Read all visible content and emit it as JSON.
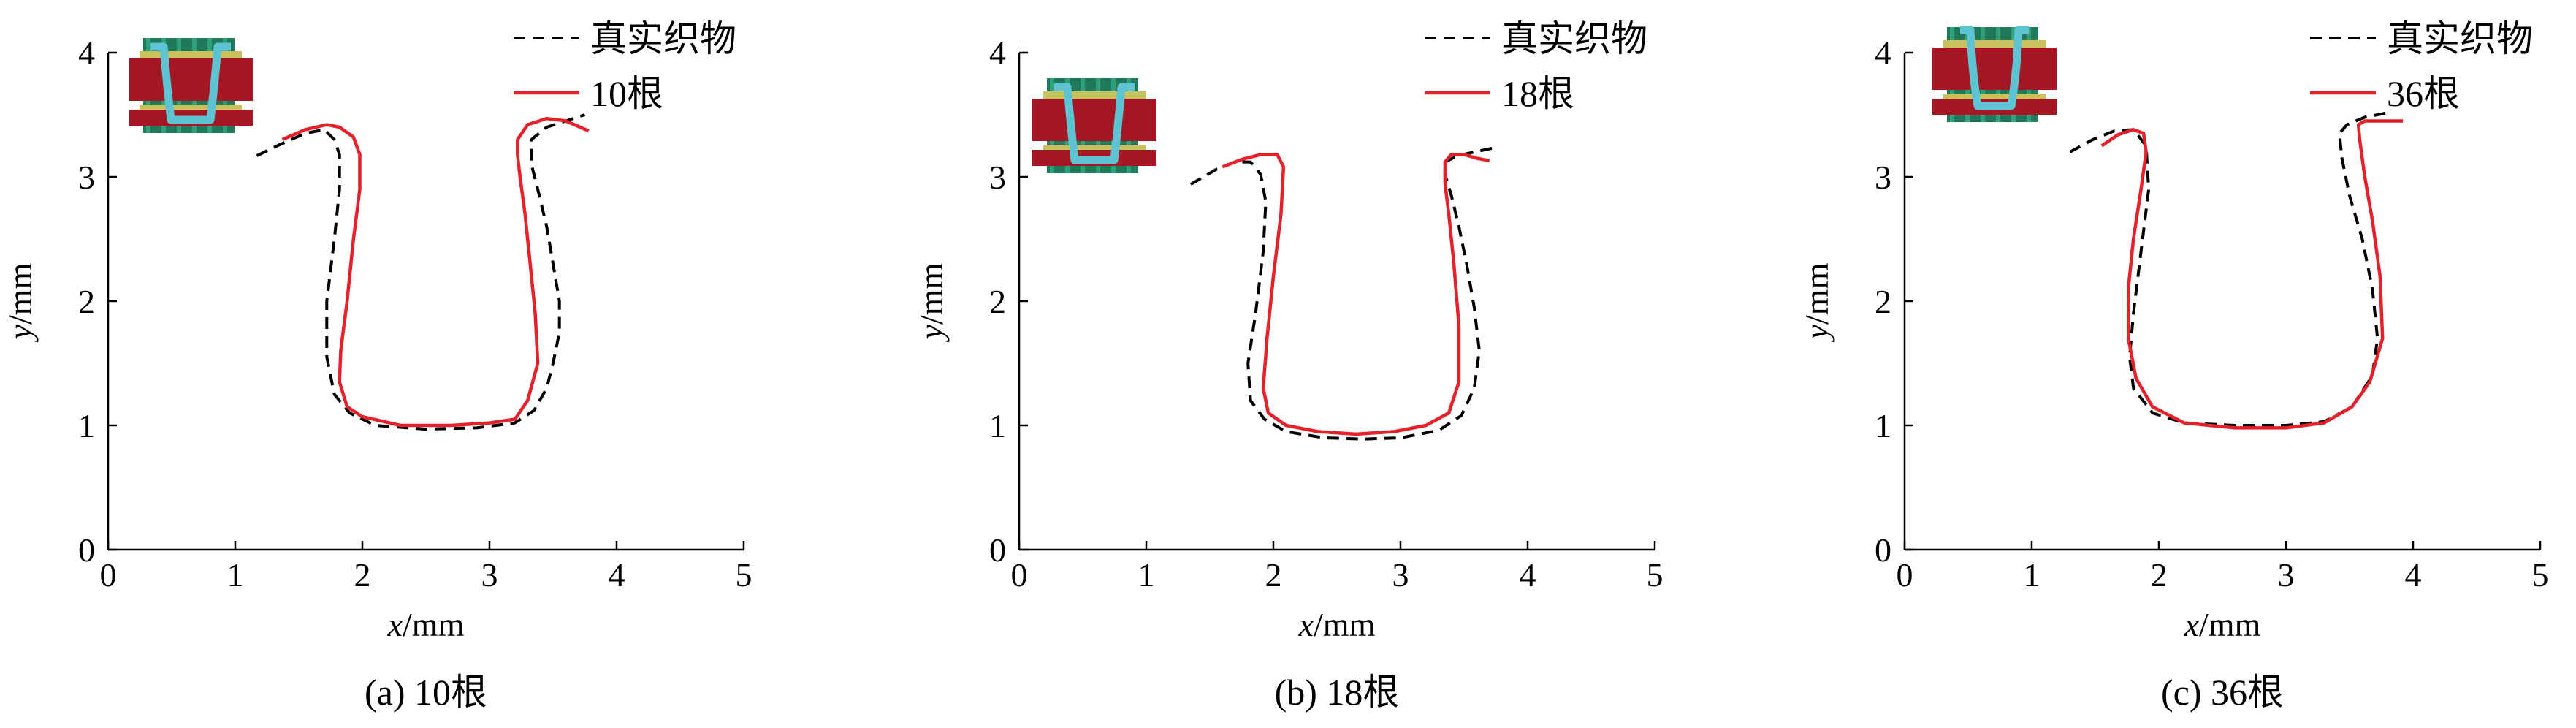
{
  "colors": {
    "real": "#000000",
    "sim": "#e8202a"
  },
  "chart_data": [
    {
      "type": "line",
      "caption": "(a) 10根",
      "xlabel_italic": "x",
      "xlabel_unit": "/mm",
      "ylabel_italic": "y",
      "ylabel_unit": "/mm",
      "xlim": [
        0,
        5
      ],
      "ylim": [
        0,
        4
      ],
      "xticks": [
        "0",
        "1",
        "2",
        "3",
        "4",
        "5"
      ],
      "yticks": [
        "0",
        "1",
        "2",
        "3",
        "4"
      ],
      "legend_position": "top-right",
      "series": [
        {
          "name": "真实织物",
          "style": "dashed",
          "color": "#000000",
          "x": [
            1.17,
            1.33,
            1.55,
            1.7,
            1.78,
            1.82,
            1.82,
            1.78,
            1.72,
            1.72,
            1.78,
            1.9,
            2.1,
            2.5,
            2.9,
            3.2,
            3.35,
            3.45,
            3.5,
            3.55,
            3.55,
            3.5,
            3.45,
            3.38,
            3.33,
            3.33,
            3.45,
            3.6,
            3.75
          ],
          "y": [
            3.17,
            3.25,
            3.35,
            3.38,
            3.3,
            3.18,
            2.9,
            2.5,
            2.0,
            1.55,
            1.25,
            1.1,
            1.0,
            0.97,
            0.98,
            1.02,
            1.12,
            1.3,
            1.5,
            1.75,
            2.0,
            2.3,
            2.6,
            2.9,
            3.1,
            3.3,
            3.4,
            3.45,
            3.5
          ]
        },
        {
          "name": "10根",
          "style": "solid",
          "color": "#e8202a",
          "x": [
            1.37,
            1.55,
            1.72,
            1.82,
            1.93,
            1.98,
            1.98,
            1.93,
            1.88,
            1.83,
            1.82,
            1.88,
            2.0,
            2.3,
            2.7,
            3.0,
            3.2,
            3.3,
            3.38,
            3.36,
            3.32,
            3.28,
            3.24,
            3.22,
            3.22,
            3.3,
            3.45,
            3.6,
            3.78
          ],
          "y": [
            3.3,
            3.38,
            3.42,
            3.4,
            3.32,
            3.18,
            2.9,
            2.5,
            2.0,
            1.6,
            1.35,
            1.15,
            1.07,
            1.0,
            1.0,
            1.02,
            1.05,
            1.2,
            1.5,
            1.9,
            2.3,
            2.7,
            3.0,
            3.18,
            3.3,
            3.42,
            3.47,
            3.45,
            3.37
          ]
        }
      ]
    },
    {
      "type": "line",
      "caption": "(b) 18根",
      "xlabel_italic": "x",
      "xlabel_unit": "/mm",
      "ylabel_italic": "y",
      "ylabel_unit": "/mm",
      "xlim": [
        0,
        5
      ],
      "ylim": [
        0,
        4
      ],
      "xticks": [
        "0",
        "1",
        "2",
        "3",
        "4",
        "5"
      ],
      "yticks": [
        "0",
        "1",
        "2",
        "3",
        "4"
      ],
      "legend_position": "top-right",
      "series": [
        {
          "name": "真实织物",
          "style": "dashed",
          "color": "#000000",
          "x": [
            1.35,
            1.55,
            1.7,
            1.82,
            1.9,
            1.94,
            1.92,
            1.86,
            1.8,
            1.82,
            1.93,
            2.1,
            2.4,
            2.7,
            3.0,
            3.3,
            3.48,
            3.58,
            3.62,
            3.58,
            3.52,
            3.46,
            3.4,
            3.35,
            3.35,
            3.45,
            3.58,
            3.72
          ],
          "y": [
            2.94,
            3.06,
            3.12,
            3.12,
            3.02,
            2.8,
            2.4,
            1.9,
            1.5,
            1.2,
            1.05,
            0.95,
            0.9,
            0.89,
            0.9,
            0.96,
            1.08,
            1.3,
            1.6,
            1.95,
            2.3,
            2.6,
            2.85,
            3.02,
            3.12,
            3.17,
            3.2,
            3.23
          ]
        },
        {
          "name": "18根",
          "style": "solid",
          "color": "#e8202a",
          "x": [
            1.6,
            1.75,
            1.9,
            2.03,
            2.08,
            2.06,
            2.0,
            1.95,
            1.92,
            1.96,
            2.1,
            2.35,
            2.65,
            2.95,
            3.2,
            3.38,
            3.46,
            3.46,
            3.42,
            3.38,
            3.35,
            3.35,
            3.4,
            3.5,
            3.6,
            3.7
          ],
          "y": [
            3.08,
            3.14,
            3.18,
            3.18,
            3.08,
            2.7,
            2.2,
            1.7,
            1.3,
            1.1,
            1.0,
            0.95,
            0.93,
            0.95,
            1.0,
            1.1,
            1.35,
            1.8,
            2.3,
            2.7,
            2.95,
            3.12,
            3.18,
            3.18,
            3.15,
            3.13
          ]
        }
      ]
    },
    {
      "type": "line",
      "caption": "(c) 36根",
      "xlabel_italic": "x",
      "xlabel_unit": "/mm",
      "ylabel_italic": "y",
      "ylabel_unit": "/mm",
      "xlim": [
        0,
        5
      ],
      "ylim": [
        0,
        4
      ],
      "xticks": [
        "0",
        "1",
        "2",
        "3",
        "4",
        "5"
      ],
      "yticks": [
        "0",
        "1",
        "2",
        "3",
        "4"
      ],
      "legend_position": "top-right",
      "series": [
        {
          "name": "真实织物",
          "style": "dashed",
          "color": "#000000",
          "x": [
            1.3,
            1.48,
            1.65,
            1.8,
            1.9,
            1.92,
            1.86,
            1.8,
            1.77,
            1.8,
            1.95,
            2.2,
            2.6,
            3.0,
            3.3,
            3.52,
            3.68,
            3.72,
            3.68,
            3.6,
            3.5,
            3.44,
            3.42,
            3.48,
            3.62,
            3.82
          ],
          "y": [
            3.2,
            3.3,
            3.37,
            3.38,
            3.25,
            2.9,
            2.4,
            1.9,
            1.55,
            1.3,
            1.1,
            1.02,
            1.0,
            1.0,
            1.03,
            1.15,
            1.4,
            1.7,
            2.1,
            2.5,
            2.85,
            3.15,
            3.35,
            3.42,
            3.48,
            3.52
          ]
        },
        {
          "name": "36根",
          "style": "solid",
          "color": "#e8202a",
          "x": [
            1.55,
            1.68,
            1.8,
            1.88,
            1.9,
            1.86,
            1.8,
            1.76,
            1.76,
            1.82,
            1.95,
            2.2,
            2.6,
            3.0,
            3.3,
            3.52,
            3.66,
            3.76,
            3.74,
            3.68,
            3.62,
            3.58,
            3.57,
            3.62,
            3.75,
            3.92
          ],
          "y": [
            3.25,
            3.34,
            3.38,
            3.35,
            3.2,
            2.9,
            2.5,
            2.1,
            1.7,
            1.38,
            1.15,
            1.02,
            0.98,
            0.98,
            1.02,
            1.15,
            1.35,
            1.7,
            2.2,
            2.65,
            3.0,
            3.3,
            3.42,
            3.45,
            3.45,
            3.45
          ]
        }
      ]
    }
  ]
}
